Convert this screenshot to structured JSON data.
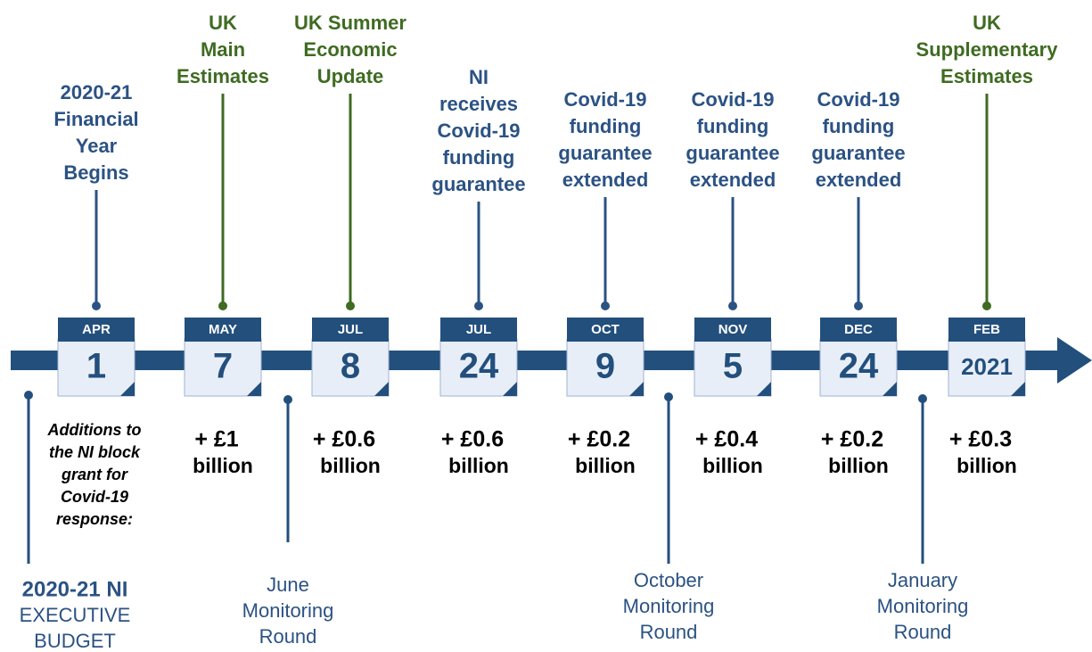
{
  "events": [
    {
      "month": "APR",
      "day": "1",
      "label": [
        "2020-21",
        "Financial",
        "Year",
        "Begins"
      ],
      "color": "blue"
    },
    {
      "month": "MAY",
      "day": "7",
      "label": [
        "UK",
        "Main",
        "Estimates"
      ],
      "color": "green",
      "amount": [
        "+ £1",
        "billion"
      ]
    },
    {
      "month": "JUL",
      "day": "8",
      "label": [
        "UK Summer",
        "Economic",
        "Update"
      ],
      "color": "green",
      "amount": [
        "+ £0.6",
        "billion"
      ]
    },
    {
      "month": "JUL",
      "day": "24",
      "label": [
        "NI",
        "receives",
        "Covid-19",
        "funding",
        "guarantee"
      ],
      "color": "blue",
      "amount": [
        "+ £0.6",
        "billion"
      ]
    },
    {
      "month": "OCT",
      "day": "9",
      "label": [
        "Covid-19",
        "funding",
        "guarantee",
        "extended"
      ],
      "color": "blue",
      "amount": [
        "+ £0.2",
        "billion"
      ]
    },
    {
      "month": "NOV",
      "day": "5",
      "label": [
        "Covid-19",
        "funding",
        "guarantee",
        "extended"
      ],
      "color": "blue",
      "amount": [
        "+ £0.4",
        "billion"
      ]
    },
    {
      "month": "DEC",
      "day": "24",
      "label": [
        "Covid-19",
        "funding",
        "guarantee",
        "extended"
      ],
      "color": "blue",
      "amount": [
        "+ £0.2",
        "billion"
      ]
    },
    {
      "month": "FEB",
      "day": "2021",
      "label": [
        "UK",
        "Supplementary",
        "Estimates"
      ],
      "color": "green",
      "amount": [
        "+ £0.3",
        "billion"
      ]
    }
  ],
  "note": [
    "Additions to",
    "the NI block",
    "grant for",
    "Covid-19",
    "response:"
  ],
  "budget": [
    "2020-21 NI",
    "EXECUTIVE",
    "BUDGET"
  ],
  "monitoring": [
    [
      "June",
      "Monitoring",
      "Round"
    ],
    [
      "October",
      "Monitoring",
      "Round"
    ],
    [
      "January",
      "Monitoring",
      "Round"
    ]
  ]
}
